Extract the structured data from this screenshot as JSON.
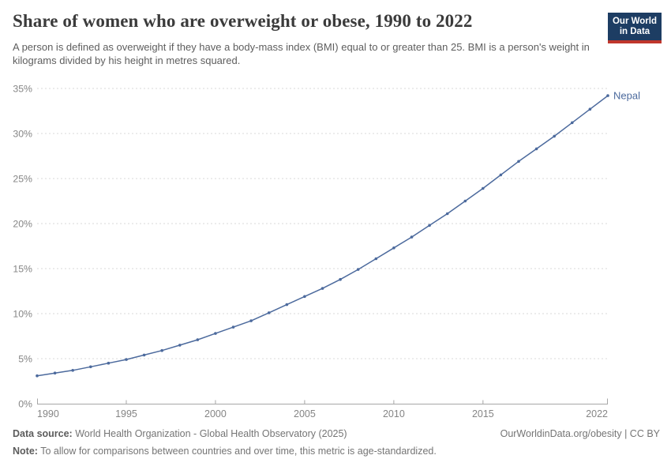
{
  "header": {
    "title": "Share of women who are overweight or obese, 1990 to 2022",
    "subtitle": "A person is defined as overweight if they have a body-mass index (BMI) equal to or greater than 25. BMI is a person's weight in kilograms divided by his height in metres squared.",
    "logo": {
      "line1": "Our World",
      "line2": "in Data",
      "bg_color": "#1d3d63",
      "accent_color": "#c0362c"
    }
  },
  "chart_data": {
    "type": "line",
    "title": "Share of women who are overweight or obese, 1990 to 2022",
    "xlabel": "",
    "ylabel": "",
    "xlim": [
      1990,
      2022
    ],
    "ylim": [
      0,
      35
    ],
    "grid": "horizontal-dashed",
    "legend_position": "end-of-line-label",
    "x_ticks": [
      1990,
      1995,
      2000,
      2005,
      2010,
      2015,
      2022
    ],
    "y_ticks": [
      "0%",
      "5%",
      "10%",
      "15%",
      "20%",
      "25%",
      "30%",
      "35%"
    ],
    "series": [
      {
        "name": "Nepal",
        "color": "#4c6a9d",
        "x": [
          1990,
          1991,
          1992,
          1993,
          1994,
          1995,
          1996,
          1997,
          1998,
          1999,
          2000,
          2001,
          2002,
          2003,
          2004,
          2005,
          2006,
          2007,
          2008,
          2009,
          2010,
          2011,
          2012,
          2013,
          2014,
          2015,
          2016,
          2017,
          2018,
          2019,
          2020,
          2021,
          2022
        ],
        "values": [
          3.1,
          3.4,
          3.7,
          4.1,
          4.5,
          4.9,
          5.4,
          5.9,
          6.5,
          7.1,
          7.8,
          8.5,
          9.2,
          10.1,
          11.0,
          11.9,
          12.8,
          13.8,
          14.9,
          16.1,
          17.3,
          18.5,
          19.8,
          21.1,
          22.5,
          23.9,
          25.4,
          26.9,
          28.3,
          29.7,
          31.2,
          32.7,
          34.2
        ]
      }
    ],
    "colors": {
      "gridline": "#d8d8d8",
      "axis": "#a6a6a6",
      "tick_label": "#858585"
    }
  },
  "footer": {
    "datasource_label": "Data source:",
    "datasource_text": "World Health Organization - Global Health Observatory (2025)",
    "note_label": "Note:",
    "note_text": "To allow for comparisons between countries and over time, this metric is age-standardized.",
    "link": "OurWorldinData.org/obesity | CC BY"
  }
}
